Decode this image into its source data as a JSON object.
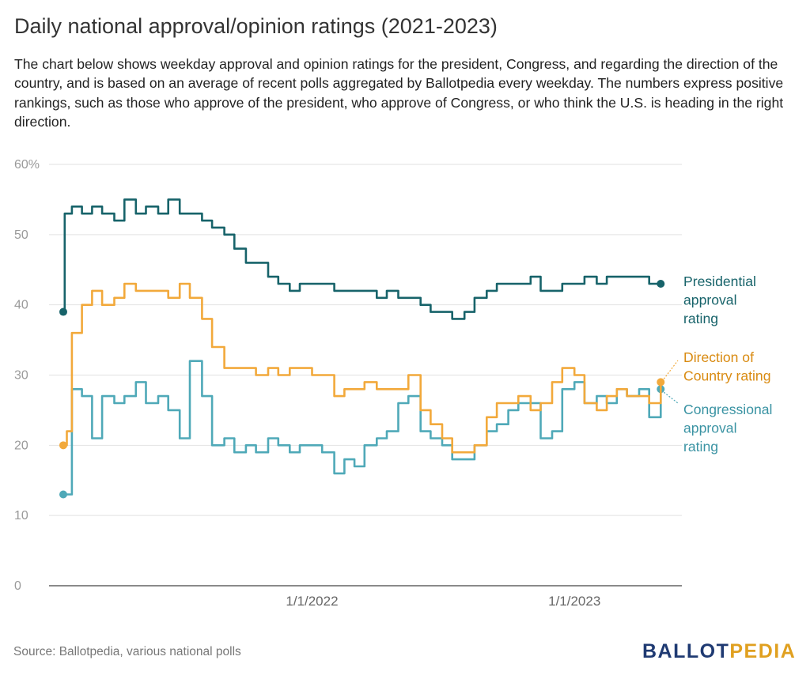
{
  "header": {
    "title": "Daily national approval/opinion ratings (2021-2023)",
    "description": "The chart below shows weekday approval and opinion ratings for the president, Congress, and regarding the direction of the country, and is based on an average of recent polls aggregated by Ballotpedia every weekday. The numbers express positive rankings, such as those who approve of the president, who approve of Congress, or who think the U.S. is heading in the right direction."
  },
  "footer": {
    "source": "Source: Ballotpedia, various national polls",
    "logo_part1": "BALLOT",
    "logo_part2": "PEDIA"
  },
  "chart_data": {
    "type": "line",
    "title": "Daily national approval/opinion ratings (2021-2023)",
    "xlabel": "",
    "ylabel": "",
    "ylim": [
      0,
      60
    ],
    "xlim": [
      "2021-01-20",
      "2023-05-15"
    ],
    "y_ticks": [
      "0",
      "10",
      "20",
      "30",
      "40",
      "50",
      "60%"
    ],
    "y_tick_values": [
      0,
      10,
      20,
      30,
      40,
      50,
      60
    ],
    "x_ticks": [
      "1/1/2022",
      "1/1/2023"
    ],
    "x_tick_values": [
      "2022-01-01",
      "2023-01-01"
    ],
    "grid": true,
    "legend": "end-of-line labels",
    "colors": {
      "presidential": "#17636a",
      "direction": "#f2a93b",
      "direction_label": "#d98b12",
      "congress": "#4fa9b8",
      "congress_label": "#3a93a3"
    },
    "series": [
      {
        "name": "Presidential approval rating",
        "label_lines": [
          "Presidential",
          "approval",
          "rating"
        ],
        "points": [
          [
            "2021-01-20",
            39
          ],
          [
            "2021-01-22",
            53
          ],
          [
            "2021-02-01",
            54
          ],
          [
            "2021-02-15",
            53
          ],
          [
            "2021-03-01",
            54
          ],
          [
            "2021-03-15",
            53
          ],
          [
            "2021-04-01",
            52
          ],
          [
            "2021-04-15",
            55
          ],
          [
            "2021-05-01",
            53
          ],
          [
            "2021-05-15",
            54
          ],
          [
            "2021-06-01",
            53
          ],
          [
            "2021-06-15",
            55
          ],
          [
            "2021-07-01",
            53
          ],
          [
            "2021-07-15",
            53
          ],
          [
            "2021-08-01",
            52
          ],
          [
            "2021-08-15",
            51
          ],
          [
            "2021-09-01",
            50
          ],
          [
            "2021-09-15",
            48
          ],
          [
            "2021-10-01",
            46
          ],
          [
            "2021-10-15",
            46
          ],
          [
            "2021-11-01",
            44
          ],
          [
            "2021-11-15",
            43
          ],
          [
            "2021-12-01",
            42
          ],
          [
            "2021-12-15",
            43
          ],
          [
            "2022-01-01",
            43
          ],
          [
            "2022-01-15",
            43
          ],
          [
            "2022-02-01",
            42
          ],
          [
            "2022-02-15",
            42
          ],
          [
            "2022-03-01",
            42
          ],
          [
            "2022-03-15",
            42
          ],
          [
            "2022-04-01",
            41
          ],
          [
            "2022-04-15",
            42
          ],
          [
            "2022-05-01",
            41
          ],
          [
            "2022-05-15",
            41
          ],
          [
            "2022-06-01",
            40
          ],
          [
            "2022-06-15",
            39
          ],
          [
            "2022-07-01",
            39
          ],
          [
            "2022-07-15",
            38
          ],
          [
            "2022-08-01",
            39
          ],
          [
            "2022-08-15",
            41
          ],
          [
            "2022-09-01",
            42
          ],
          [
            "2022-09-15",
            43
          ],
          [
            "2022-10-01",
            43
          ],
          [
            "2022-10-15",
            43
          ],
          [
            "2022-11-01",
            44
          ],
          [
            "2022-11-15",
            42
          ],
          [
            "2022-12-01",
            42
          ],
          [
            "2022-12-15",
            43
          ],
          [
            "2023-01-01",
            43
          ],
          [
            "2023-01-15",
            44
          ],
          [
            "2023-02-01",
            43
          ],
          [
            "2023-02-15",
            44
          ],
          [
            "2023-03-01",
            44
          ],
          [
            "2023-03-15",
            44
          ],
          [
            "2023-04-01",
            44
          ],
          [
            "2023-04-15",
            43
          ],
          [
            "2023-05-01",
            43
          ]
        ]
      },
      {
        "name": "Direction of Country rating",
        "label_lines": [
          "Direction of",
          "Country rating"
        ],
        "points": [
          [
            "2021-01-20",
            20
          ],
          [
            "2021-01-25",
            22
          ],
          [
            "2021-02-01",
            36
          ],
          [
            "2021-02-15",
            40
          ],
          [
            "2021-03-01",
            42
          ],
          [
            "2021-03-15",
            40
          ],
          [
            "2021-04-01",
            41
          ],
          [
            "2021-04-15",
            43
          ],
          [
            "2021-05-01",
            42
          ],
          [
            "2021-05-15",
            42
          ],
          [
            "2021-06-01",
            42
          ],
          [
            "2021-06-15",
            41
          ],
          [
            "2021-07-01",
            43
          ],
          [
            "2021-07-15",
            41
          ],
          [
            "2021-08-01",
            38
          ],
          [
            "2021-08-15",
            34
          ],
          [
            "2021-09-01",
            31
          ],
          [
            "2021-09-15",
            31
          ],
          [
            "2021-10-01",
            31
          ],
          [
            "2021-10-15",
            30
          ],
          [
            "2021-11-01",
            31
          ],
          [
            "2021-11-15",
            30
          ],
          [
            "2021-12-01",
            31
          ],
          [
            "2021-12-15",
            31
          ],
          [
            "2022-01-01",
            30
          ],
          [
            "2022-01-15",
            30
          ],
          [
            "2022-02-01",
            27
          ],
          [
            "2022-02-15",
            28
          ],
          [
            "2022-03-01",
            28
          ],
          [
            "2022-03-15",
            29
          ],
          [
            "2022-04-01",
            28
          ],
          [
            "2022-04-15",
            28
          ],
          [
            "2022-05-01",
            28
          ],
          [
            "2022-05-15",
            30
          ],
          [
            "2022-06-01",
            25
          ],
          [
            "2022-06-15",
            23
          ],
          [
            "2022-07-01",
            21
          ],
          [
            "2022-07-15",
            19
          ],
          [
            "2022-08-01",
            19
          ],
          [
            "2022-08-15",
            20
          ],
          [
            "2022-09-01",
            24
          ],
          [
            "2022-09-15",
            26
          ],
          [
            "2022-10-01",
            26
          ],
          [
            "2022-10-15",
            27
          ],
          [
            "2022-11-01",
            25
          ],
          [
            "2022-11-15",
            26
          ],
          [
            "2022-12-01",
            29
          ],
          [
            "2022-12-15",
            31
          ],
          [
            "2023-01-01",
            30
          ],
          [
            "2023-01-15",
            26
          ],
          [
            "2023-02-01",
            25
          ],
          [
            "2023-02-15",
            27
          ],
          [
            "2023-03-01",
            28
          ],
          [
            "2023-03-15",
            27
          ],
          [
            "2023-04-01",
            27
          ],
          [
            "2023-04-15",
            26
          ],
          [
            "2023-05-01",
            29
          ]
        ]
      },
      {
        "name": "Congressional approval rating",
        "label_lines": [
          "Congressional",
          "approval",
          "rating"
        ],
        "points": [
          [
            "2021-01-20",
            13
          ],
          [
            "2021-01-25",
            13
          ],
          [
            "2021-02-01",
            28
          ],
          [
            "2021-02-15",
            27
          ],
          [
            "2021-03-01",
            21
          ],
          [
            "2021-03-15",
            27
          ],
          [
            "2021-04-01",
            26
          ],
          [
            "2021-04-15",
            27
          ],
          [
            "2021-05-01",
            29
          ],
          [
            "2021-05-15",
            26
          ],
          [
            "2021-06-01",
            27
          ],
          [
            "2021-06-15",
            25
          ],
          [
            "2021-07-01",
            21
          ],
          [
            "2021-07-15",
            32
          ],
          [
            "2021-08-01",
            27
          ],
          [
            "2021-08-15",
            20
          ],
          [
            "2021-09-01",
            21
          ],
          [
            "2021-09-15",
            19
          ],
          [
            "2021-10-01",
            20
          ],
          [
            "2021-10-15",
            19
          ],
          [
            "2021-11-01",
            21
          ],
          [
            "2021-11-15",
            20
          ],
          [
            "2021-12-01",
            19
          ],
          [
            "2021-12-15",
            20
          ],
          [
            "2022-01-01",
            20
          ],
          [
            "2022-01-15",
            19
          ],
          [
            "2022-02-01",
            16
          ],
          [
            "2022-02-15",
            18
          ],
          [
            "2022-03-01",
            17
          ],
          [
            "2022-03-15",
            20
          ],
          [
            "2022-04-01",
            21
          ],
          [
            "2022-04-15",
            22
          ],
          [
            "2022-05-01",
            26
          ],
          [
            "2022-05-15",
            27
          ],
          [
            "2022-06-01",
            22
          ],
          [
            "2022-06-15",
            21
          ],
          [
            "2022-07-01",
            20
          ],
          [
            "2022-07-15",
            18
          ],
          [
            "2022-08-01",
            18
          ],
          [
            "2022-08-15",
            20
          ],
          [
            "2022-09-01",
            22
          ],
          [
            "2022-09-15",
            23
          ],
          [
            "2022-10-01",
            25
          ],
          [
            "2022-10-15",
            26
          ],
          [
            "2022-11-01",
            26
          ],
          [
            "2022-11-15",
            21
          ],
          [
            "2022-12-01",
            22
          ],
          [
            "2022-12-15",
            28
          ],
          [
            "2023-01-01",
            29
          ],
          [
            "2023-01-15",
            26
          ],
          [
            "2023-02-01",
            27
          ],
          [
            "2023-02-15",
            26
          ],
          [
            "2023-03-01",
            28
          ],
          [
            "2023-03-15",
            27
          ],
          [
            "2023-04-01",
            28
          ],
          [
            "2023-04-15",
            24
          ],
          [
            "2023-05-01",
            28
          ]
        ]
      }
    ]
  }
}
